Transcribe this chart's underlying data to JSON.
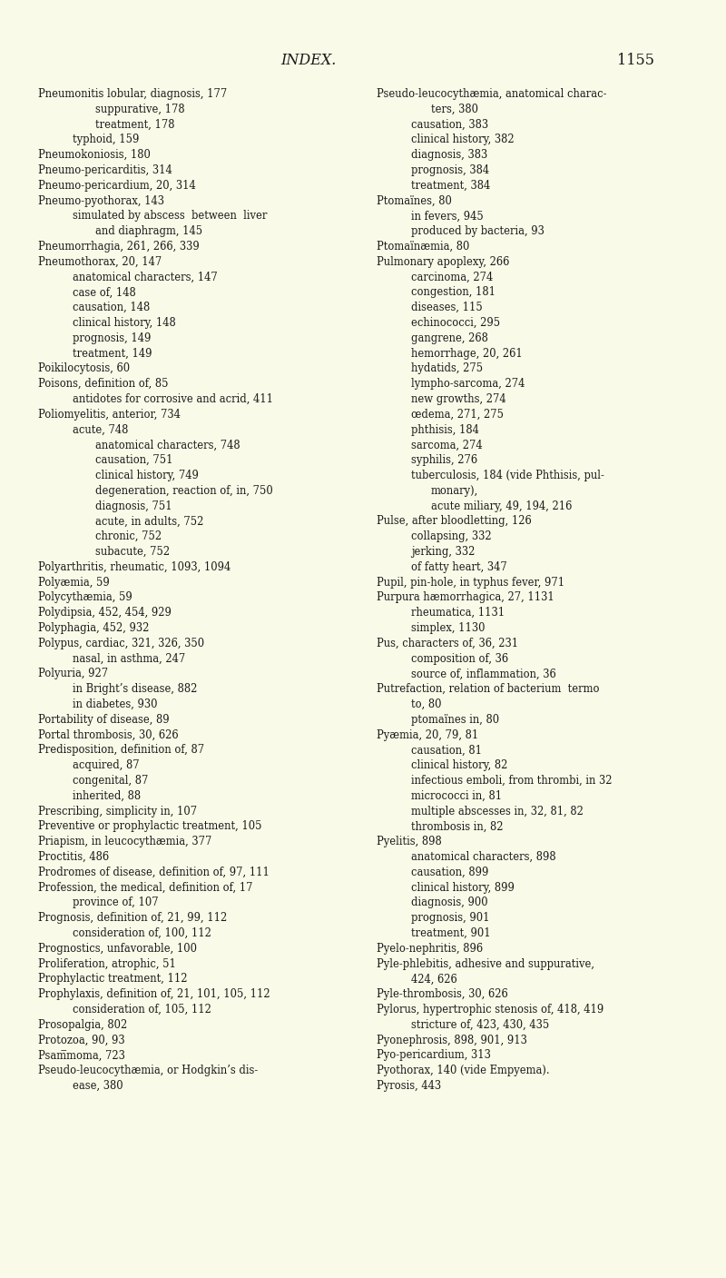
{
  "background_color": "#fafae8",
  "header_text": "INDEX.",
  "page_number": "1155",
  "header_fontsize": 11.5,
  "body_fontsize": 8.3,
  "left_column": [
    [
      "Pneumonitis lobular, diagnosis, 177",
      0
    ],
    [
      "suppurative, 178",
      2
    ],
    [
      "treatment, 178",
      2
    ],
    [
      "typhoid, 159",
      1
    ],
    [
      "Pneumokoniosis, 180",
      0
    ],
    [
      "Pneumo-pericarditis, 314",
      0
    ],
    [
      "Pneumo-pericardium, 20, 314",
      0
    ],
    [
      "Pneumo-pyothorax, 143",
      0
    ],
    [
      "simulated by abscess  between  liver",
      1
    ],
    [
      "and diaphragm, 145",
      2
    ],
    [
      "Pneumorrhagia, 261, 266, 339",
      0
    ],
    [
      "Pneumothorax, 20, 147",
      0
    ],
    [
      "anatomical characters, 147",
      1
    ],
    [
      "case of, 148",
      1
    ],
    [
      "causation, 148",
      1
    ],
    [
      "clinical history, 148",
      1
    ],
    [
      "prognosis, 149",
      1
    ],
    [
      "treatment, 149",
      1
    ],
    [
      "Poikilocytosis, 60",
      0
    ],
    [
      "Poisons, definition of, 85",
      0
    ],
    [
      "antidotes for corrosive and acrid, 411",
      1
    ],
    [
      "Poliomyelitis, anterior, 734",
      0
    ],
    [
      "acute, 748",
      1
    ],
    [
      "anatomical characters, 748",
      2
    ],
    [
      "causation, 751",
      2
    ],
    [
      "clinical history, 749",
      2
    ],
    [
      "degeneration, reaction of, in, 750",
      2
    ],
    [
      "diagnosis, 751",
      2
    ],
    [
      "acute, in adults, 752",
      2
    ],
    [
      "chronic, 752",
      2
    ],
    [
      "subacute, 752",
      2
    ],
    [
      "Polyarthritis, rheumatic, 1093, 1094",
      0
    ],
    [
      "Polyæmia, 59",
      0
    ],
    [
      "Polycythæmia, 59",
      0
    ],
    [
      "Polydipsia, 452, 454, 929",
      0
    ],
    [
      "Polyphagia, 452, 932",
      0
    ],
    [
      "Polypus, cardiac, 321, 326, 350",
      0
    ],
    [
      "nasal, in asthma, 247",
      1
    ],
    [
      "Polyuria, 927",
      0
    ],
    [
      "in Bright’s disease, 882",
      1
    ],
    [
      "in diabetes, 930",
      1
    ],
    [
      "Portability of disease, 89",
      0
    ],
    [
      "Portal thrombosis, 30, 626",
      0
    ],
    [
      "Predisposition, definition of, 87",
      0
    ],
    [
      "acquired, 87",
      1
    ],
    [
      "congenital, 87",
      1
    ],
    [
      "inherited, 88",
      1
    ],
    [
      "Prescribing, simplicity in, 107",
      0
    ],
    [
      "Preventive or prophylactic treatment, 105",
      0
    ],
    [
      "Priapism, in leucocythæmia, 377",
      0
    ],
    [
      "Proctitis, 486",
      0
    ],
    [
      "Prodromes of disease, definition of, 97, 111",
      0
    ],
    [
      "Profession, the medical, definition of, 17",
      0
    ],
    [
      "province of, 107",
      1
    ],
    [
      "Prognosis, definition of, 21, 99, 112",
      0
    ],
    [
      "consideration of, 100, 112",
      1
    ],
    [
      "Prognostics, unfavorable, 100",
      0
    ],
    [
      "Proliferation, atrophic, 51",
      0
    ],
    [
      "Prophylactic treatment, 112",
      0
    ],
    [
      "Prophylaxis, definition of, 21, 101, 105, 112",
      0
    ],
    [
      "consideration of, 105, 112",
      1
    ],
    [
      "Prosopalgia, 802",
      0
    ],
    [
      "Protozoa, 90, 93",
      0
    ],
    [
      "Psam̅moma, 723",
      0
    ],
    [
      "Pseudo-leucocythæmia, or Hodgkin’s dis-",
      0
    ],
    [
      "ease, 380",
      1
    ]
  ],
  "right_column": [
    [
      "Pseudo-leucocythæmia, anatomical charac-",
      0
    ],
    [
      "ters, 380",
      2
    ],
    [
      "causation, 383",
      1
    ],
    [
      "clinical history, 382",
      1
    ],
    [
      "diagnosis, 383",
      1
    ],
    [
      "prognosis, 384",
      1
    ],
    [
      "treatment, 384",
      1
    ],
    [
      "Ptomaïnes, 80",
      0
    ],
    [
      "in fevers, 945",
      1
    ],
    [
      "produced by bacteria, 93",
      1
    ],
    [
      "Ptomaïnæmia, 80",
      0
    ],
    [
      "Pulmonary apoplexy, 266",
      0
    ],
    [
      "carcinoma, 274",
      1
    ],
    [
      "congestion, 181",
      1
    ],
    [
      "diseases, 115",
      1
    ],
    [
      "echinococci, 295",
      1
    ],
    [
      "gangrene, 268",
      1
    ],
    [
      "hemorrhage, 20, 261",
      1
    ],
    [
      "hydatids, 275",
      1
    ],
    [
      "lympho-sarcoma, 274",
      1
    ],
    [
      "new growths, 274",
      1
    ],
    [
      "œdema, 271, 275",
      1
    ],
    [
      "phthisis, 184",
      1
    ],
    [
      "sarcoma, 274",
      1
    ],
    [
      "syphilis, 276",
      1
    ],
    [
      "tuberculosis, 184 (vide Phthisis, pul-",
      1
    ],
    [
      "monary),",
      2
    ],
    [
      "acute miliary, 49, 194, 216",
      2
    ],
    [
      "Pulse, after bloodletting, 126",
      0
    ],
    [
      "collapsing, 332",
      1
    ],
    [
      "jerking, 332",
      1
    ],
    [
      "of fatty heart, 347",
      1
    ],
    [
      "Pupil, pin-hole, in typhus fever, 971",
      0
    ],
    [
      "Purpura hæmorrhagica, 27, 1131",
      0
    ],
    [
      "rheumatica, 1131",
      1
    ],
    [
      "simplex, 1130",
      1
    ],
    [
      "Pus, characters of, 36, 231",
      0
    ],
    [
      "composition of, 36",
      1
    ],
    [
      "source of, inflammation, 36",
      1
    ],
    [
      "Putrefaction, relation of bacterium  termo",
      0
    ],
    [
      "to, 80",
      1
    ],
    [
      "ptomaïnes in, 80",
      1
    ],
    [
      "Pyæmia, 20, 79, 81",
      0
    ],
    [
      "causation, 81",
      1
    ],
    [
      "clinical history, 82",
      1
    ],
    [
      "infectious emboli, from thrombi, in 32",
      1
    ],
    [
      "micrococci in, 81",
      1
    ],
    [
      "multiple abscesses in, 32, 81, 82",
      1
    ],
    [
      "thrombosis in, 82",
      1
    ],
    [
      "Pyelitis, 898",
      0
    ],
    [
      "anatomical characters, 898",
      1
    ],
    [
      "causation, 899",
      1
    ],
    [
      "clinical history, 899",
      1
    ],
    [
      "diagnosis, 900",
      1
    ],
    [
      "prognosis, 901",
      1
    ],
    [
      "treatment, 901",
      1
    ],
    [
      "Pyelo-nephritis, 896",
      0
    ],
    [
      "Pyle-phlebitis, adhesive and suppurative,",
      0
    ],
    [
      "424, 626",
      1
    ],
    [
      "Pyle-thrombosis, 30, 626",
      0
    ],
    [
      "Pylorus, hypertrophic stenosis of, 418, 419",
      0
    ],
    [
      "stricture of, 423, 430, 435",
      1
    ],
    [
      "Pyonephrosis, 898, 901, 913",
      0
    ],
    [
      "Pyo-pericardium, 313",
      0
    ],
    [
      "Pyothorax, 140 (vide Empyema).",
      0
    ],
    [
      "Pyrosis, 443",
      0
    ]
  ]
}
